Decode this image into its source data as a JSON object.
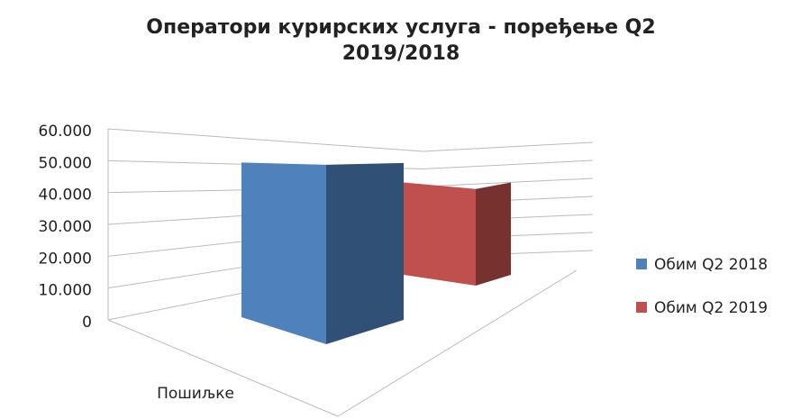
{
  "chart_data": {
    "type": "bar3d",
    "title": "Оператори курирских услуга - поређење Q2 2019/2018",
    "categories": [
      "Пошиљке"
    ],
    "series": [
      {
        "name": "Обим Q2 2018",
        "color": "#4f81bd",
        "values": [
          50000
        ]
      },
      {
        "name": "Обим Q2 2019",
        "color": "#c0504d",
        "values": [
          41000
        ]
      }
    ],
    "ylim": [
      0,
      60000
    ],
    "yticks": [
      0,
      {
        "value": 10000,
        "label": "10.000"
      },
      {
        "value": 20000,
        "label": "20.000"
      },
      {
        "value": 30000,
        "label": "30.000"
      },
      {
        "value": 40000,
        "label": "40.000"
      },
      {
        "value": 50000,
        "label": "50.000"
      },
      {
        "value": 60000,
        "label": "60.000"
      }
    ],
    "grid": true,
    "legend": "right"
  }
}
